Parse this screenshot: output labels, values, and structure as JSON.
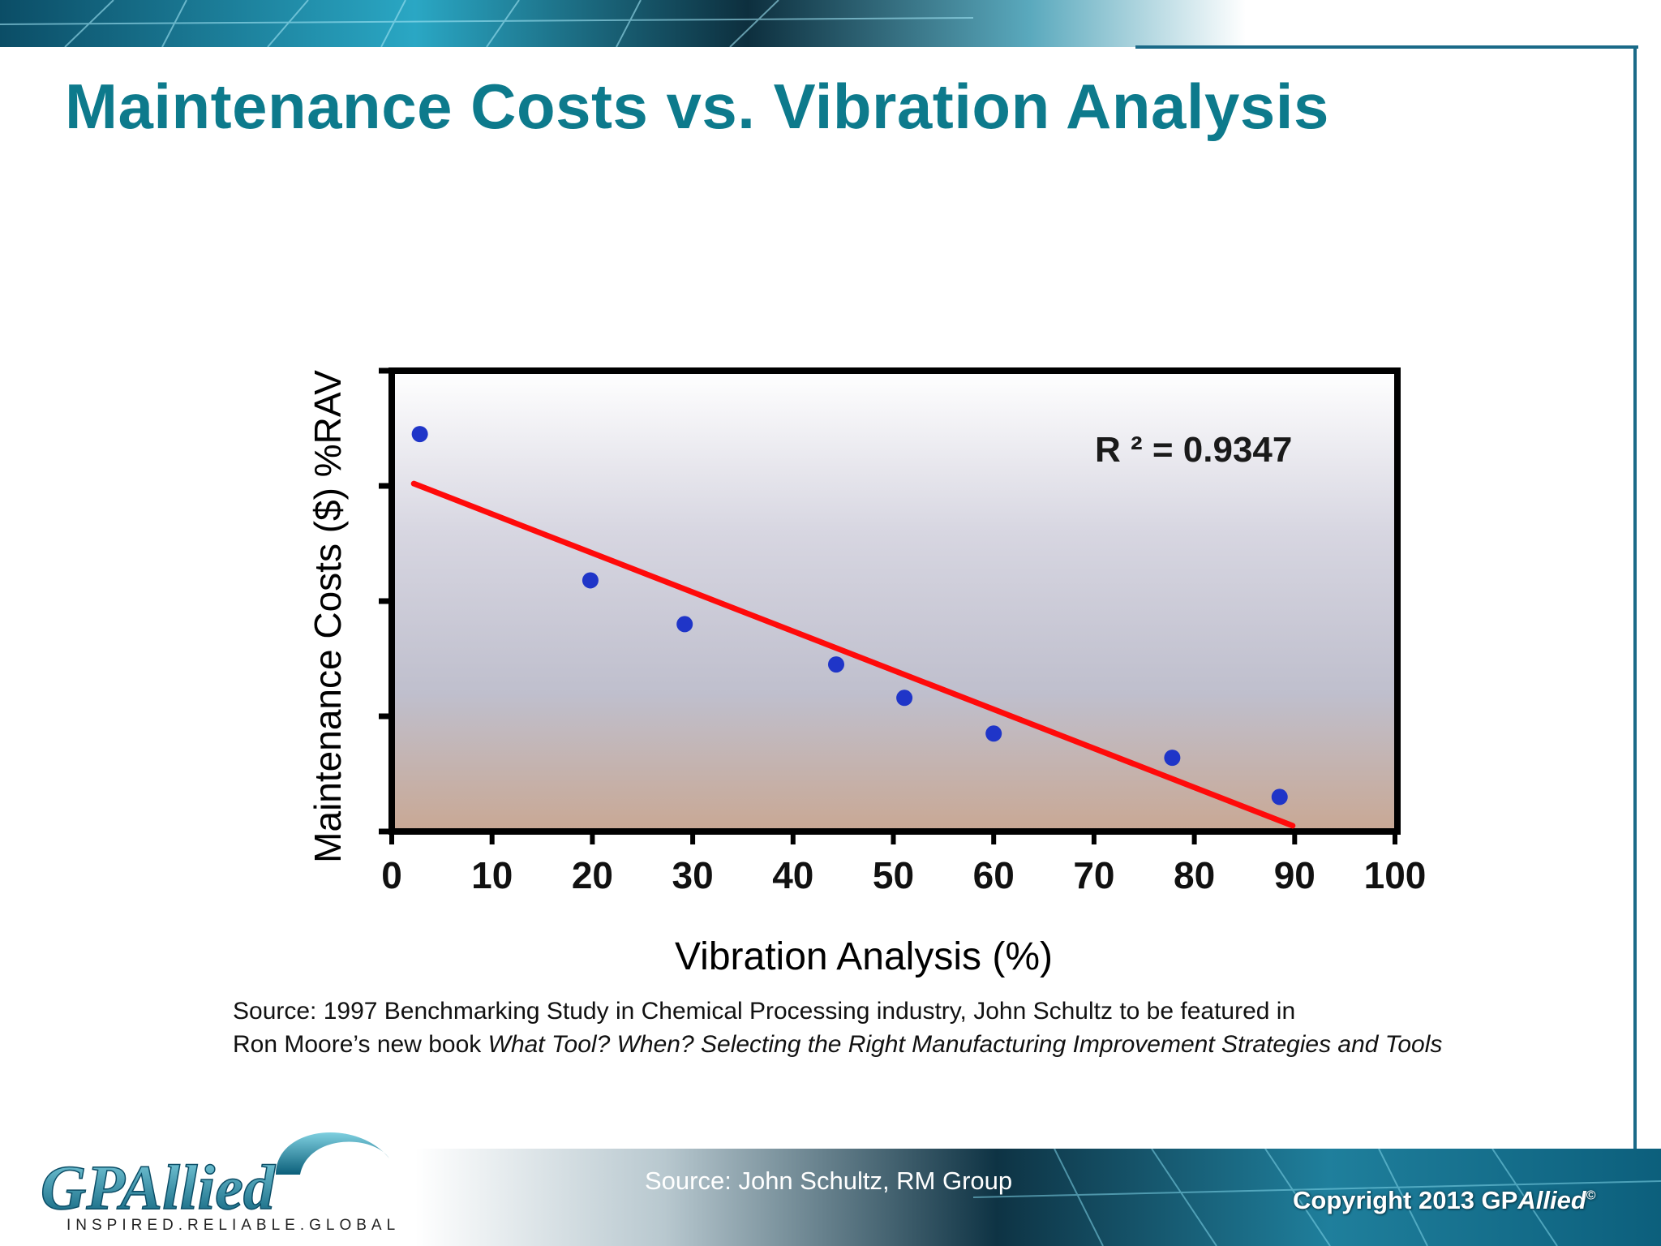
{
  "slide": {
    "title": "Maintenance Costs vs. Vibration Analysis",
    "source_line1": "Source: 1997 Benchmarking Study in Chemical Processing industry, John Schultz to be featured in",
    "source_line2_prefix": "Ron Moore’s new book ",
    "source_line2_italic": "What Tool? When? Selecting the Right Manufacturing Improvement Strategies and Tools",
    "footer_source": "Source: John Schultz, RM Group",
    "copyright_prefix": "Copyright 2013 GP",
    "copyright_brand": "Allied",
    "copyright_mark": "©"
  },
  "logo": {
    "wordmark": "GPAllied",
    "tagline": "INSPIRED.RELIABLE.GLOBAL"
  },
  "colors": {
    "title": "#0d7a8c",
    "points": "#1f35c8",
    "trendline": "#ff0a0a",
    "frame": "#1a6a88"
  },
  "chart_data": {
    "type": "scatter",
    "title": "",
    "xlabel": "Vibration Analysis (%)",
    "ylabel": "Maintenance Costs ($) %RAV",
    "xlim": [
      0,
      100
    ],
    "ylim": [
      0,
      4
    ],
    "x_ticks": [
      "0",
      "10",
      "20",
      "30",
      "40",
      "50",
      "60",
      "70",
      "80",
      "90",
      "100"
    ],
    "y_ticks_labeled": false,
    "grid": "horizontal",
    "series": [
      {
        "points": [
          {
            "x": 2.8,
            "y": 3.45
          },
          {
            "x": 19.8,
            "y": 2.18
          },
          {
            "x": 29.2,
            "y": 1.8
          },
          {
            "x": 44.3,
            "y": 1.45
          },
          {
            "x": 51.1,
            "y": 1.16
          },
          {
            "x": 60.0,
            "y": 0.85
          },
          {
            "x": 77.8,
            "y": 0.64
          },
          {
            "x": 88.5,
            "y": 0.3
          }
        ]
      }
    ],
    "trendline": {
      "x1": 2.2,
      "y1": 3.02,
      "x2": 89.8,
      "y2": 0.05
    },
    "annotation": "R ² = 0.9347"
  }
}
